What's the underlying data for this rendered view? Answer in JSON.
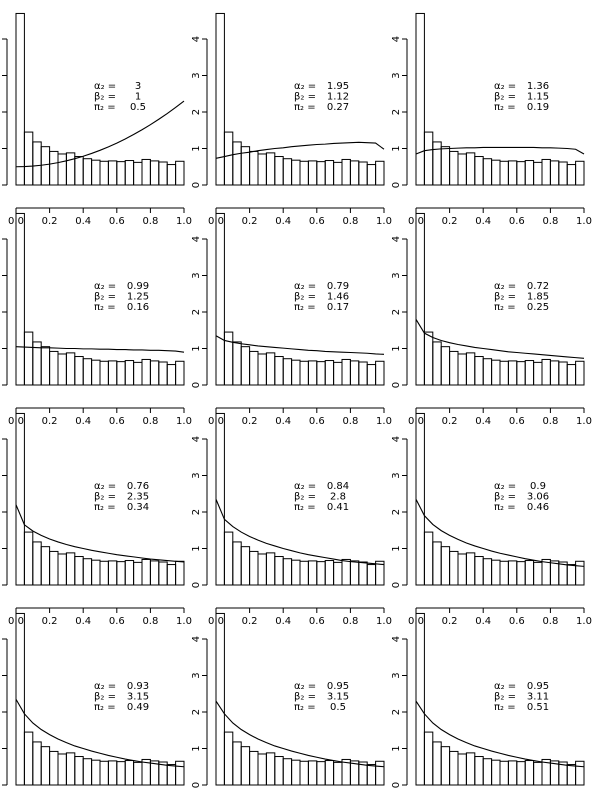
{
  "chart_data": {
    "type": "bar",
    "layout": "4x3 grid of histograms with fitted density curve",
    "xlim": [
      0,
      1
    ],
    "ylim": [
      0,
      4.7
    ],
    "x_ticks": [
      "0.0",
      "0.2",
      "0.4",
      "0.6",
      "0.8",
      "1.0"
    ],
    "y_ticks": [
      "0",
      "1",
      "2",
      "3",
      "4"
    ],
    "bins": 20,
    "histogram_values": [
      4.7,
      1.45,
      1.18,
      1.05,
      0.92,
      0.85,
      0.88,
      0.78,
      0.72,
      0.68,
      0.65,
      0.66,
      0.64,
      0.67,
      0.62,
      0.7,
      0.66,
      0.63,
      0.56,
      0.65
    ],
    "param_names": [
      "α₂ =",
      "β₂ =",
      "π₂ ="
    ],
    "panels": [
      {
        "params": [
          "3",
          "1",
          "0.5"
        ],
        "curve": [
          0.5,
          0.504,
          0.518,
          0.541,
          0.572,
          0.613,
          0.662,
          0.721,
          0.788,
          0.865,
          0.95,
          1.045,
          1.148,
          1.261,
          1.383,
          1.513,
          1.652,
          1.801,
          1.958,
          2.125,
          2.3
        ]
      },
      {
        "params": [
          "1.95",
          "1.12",
          "0.27"
        ],
        "curve": [
          0.73,
          0.78,
          0.83,
          0.87,
          0.9,
          0.94,
          0.97,
          1.0,
          1.02,
          1.05,
          1.07,
          1.09,
          1.11,
          1.12,
          1.14,
          1.15,
          1.16,
          1.17,
          1.16,
          1.15,
          0.98
        ]
      },
      {
        "params": [
          "1.36",
          "1.15",
          "0.19"
        ],
        "curve": [
          0.85,
          0.94,
          0.97,
          0.99,
          1.0,
          1.01,
          1.02,
          1.02,
          1.03,
          1.03,
          1.03,
          1.03,
          1.03,
          1.03,
          1.03,
          1.02,
          1.02,
          1.01,
          1.0,
          0.98,
          0.85
        ]
      },
      {
        "params": [
          "0.99",
          "1.25",
          "0.16"
        ],
        "curve": [
          1.05,
          1.04,
          1.03,
          1.02,
          1.02,
          1.01,
          1.0,
          1.0,
          0.99,
          0.99,
          0.98,
          0.98,
          0.97,
          0.97,
          0.96,
          0.96,
          0.95,
          0.95,
          0.94,
          0.93,
          0.9
        ]
      },
      {
        "params": [
          "0.79",
          "1.46",
          "0.17"
        ],
        "curve": [
          1.35,
          1.22,
          1.17,
          1.13,
          1.1,
          1.07,
          1.05,
          1.03,
          1.01,
          0.99,
          0.97,
          0.95,
          0.94,
          0.92,
          0.91,
          0.9,
          0.89,
          0.88,
          0.87,
          0.85,
          0.84
        ]
      },
      {
        "params": [
          "0.72",
          "1.85",
          "0.25"
        ],
        "curve": [
          1.8,
          1.42,
          1.3,
          1.22,
          1.16,
          1.11,
          1.07,
          1.03,
          1.0,
          0.97,
          0.94,
          0.91,
          0.89,
          0.87,
          0.85,
          0.83,
          0.81,
          0.79,
          0.77,
          0.75,
          0.73
        ]
      },
      {
        "params": [
          "0.76",
          "2.35",
          "0.34"
        ],
        "curve": [
          2.2,
          1.65,
          1.48,
          1.36,
          1.26,
          1.18,
          1.11,
          1.05,
          1.0,
          0.95,
          0.91,
          0.87,
          0.83,
          0.8,
          0.77,
          0.74,
          0.71,
          0.69,
          0.67,
          0.65,
          0.63
        ]
      },
      {
        "params": [
          "0.84",
          "2.8",
          "0.41"
        ],
        "curve": [
          2.35,
          1.8,
          1.6,
          1.45,
          1.33,
          1.23,
          1.14,
          1.07,
          1.0,
          0.94,
          0.88,
          0.83,
          0.79,
          0.75,
          0.71,
          0.67,
          0.64,
          0.62,
          0.6,
          0.58,
          0.56
        ]
      },
      {
        "params": [
          "0.9",
          "3.06",
          "0.46"
        ],
        "curve": [
          2.35,
          1.9,
          1.66,
          1.49,
          1.36,
          1.25,
          1.15,
          1.07,
          1.0,
          0.93,
          0.87,
          0.82,
          0.77,
          0.72,
          0.68,
          0.64,
          0.61,
          0.58,
          0.55,
          0.53,
          0.51
        ]
      },
      {
        "params": [
          "0.93",
          "3.15",
          "0.49"
        ],
        "curve": [
          2.35,
          1.95,
          1.7,
          1.52,
          1.38,
          1.26,
          1.16,
          1.07,
          1.0,
          0.93,
          0.87,
          0.81,
          0.76,
          0.71,
          0.67,
          0.63,
          0.6,
          0.57,
          0.54,
          0.52,
          0.5
        ]
      },
      {
        "params": [
          "0.95",
          "3.15",
          "0.5"
        ],
        "curve": [
          2.3,
          1.95,
          1.7,
          1.52,
          1.38,
          1.26,
          1.16,
          1.07,
          1.0,
          0.93,
          0.87,
          0.81,
          0.76,
          0.71,
          0.67,
          0.63,
          0.6,
          0.57,
          0.54,
          0.52,
          0.5
        ]
      },
      {
        "params": [
          "0.95",
          "3.11",
          "0.51"
        ],
        "curve": [
          2.3,
          1.95,
          1.7,
          1.52,
          1.38,
          1.26,
          1.16,
          1.07,
          1.0,
          0.93,
          0.87,
          0.81,
          0.76,
          0.71,
          0.67,
          0.63,
          0.6,
          0.57,
          0.54,
          0.52,
          0.5
        ]
      }
    ]
  }
}
